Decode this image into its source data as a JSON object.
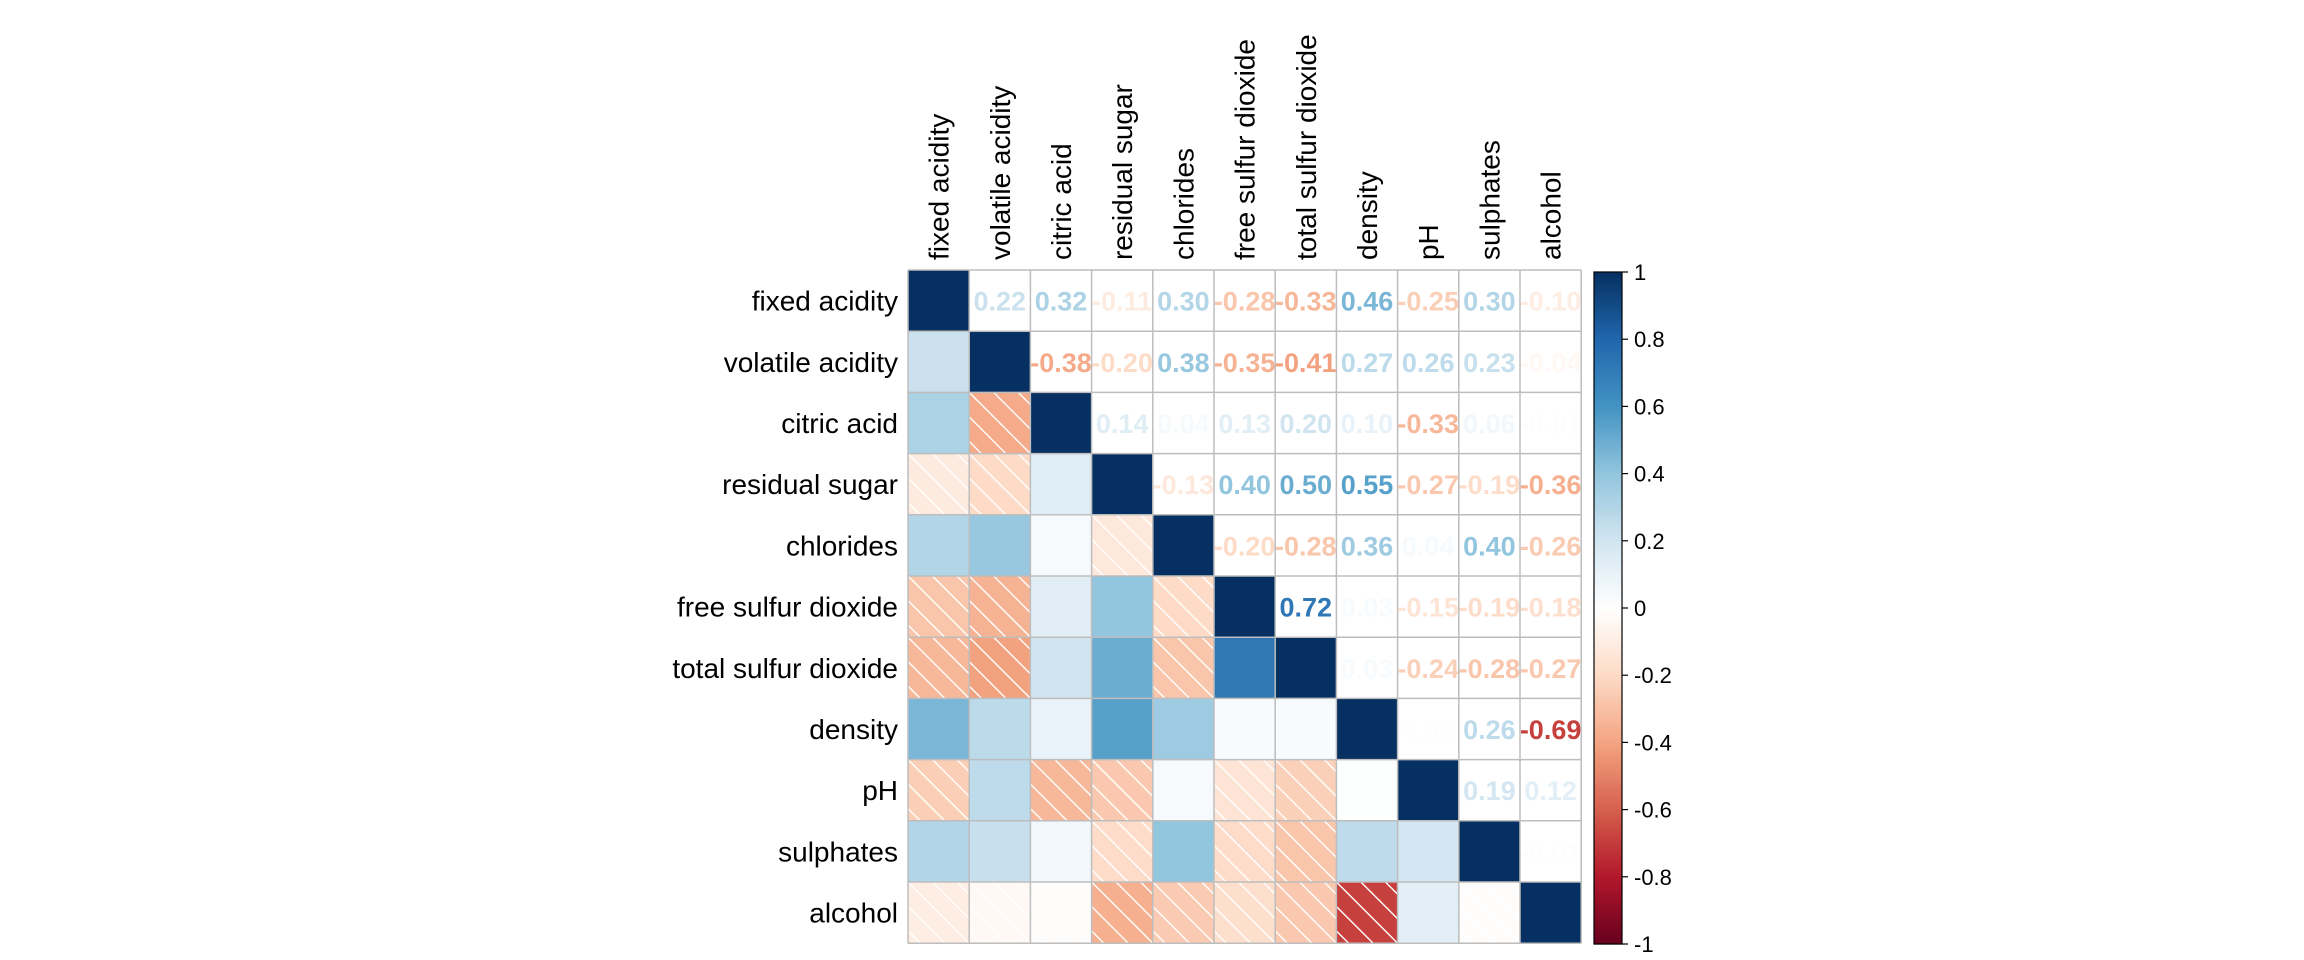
{
  "chart_data": {
    "type": "heatmap",
    "variables": [
      "fixed acidity",
      "volatile acidity",
      "citric acid",
      "residual sugar",
      "chlorides",
      "free sulfur dioxide",
      "total sulfur dioxide",
      "density",
      "pH",
      "sulphates",
      "alcohol"
    ],
    "matrix": [
      [
        1.0,
        0.22,
        0.32,
        -0.11,
        0.3,
        -0.28,
        -0.33,
        0.46,
        -0.25,
        0.3,
        -0.1
      ],
      [
        0.22,
        1.0,
        -0.38,
        -0.2,
        0.38,
        -0.35,
        -0.41,
        0.27,
        0.26,
        0.23,
        -0.04
      ],
      [
        0.32,
        -0.38,
        1.0,
        0.14,
        0.04,
        0.13,
        0.2,
        0.1,
        -0.33,
        0.06,
        -0.01
      ],
      [
        -0.11,
        -0.2,
        0.14,
        1.0,
        -0.13,
        0.4,
        0.5,
        0.55,
        -0.27,
        -0.19,
        -0.36
      ],
      [
        0.3,
        0.38,
        0.04,
        -0.13,
        1.0,
        -0.2,
        -0.28,
        0.36,
        0.04,
        0.4,
        -0.26
      ],
      [
        -0.28,
        -0.35,
        0.13,
        0.4,
        -0.2,
        1.0,
        0.72,
        0.03,
        -0.15,
        -0.19,
        -0.18
      ],
      [
        -0.33,
        -0.41,
        0.2,
        0.5,
        -0.28,
        0.72,
        1.0,
        0.03,
        -0.24,
        -0.28,
        -0.27
      ],
      [
        0.46,
        0.27,
        0.1,
        0.55,
        0.36,
        0.03,
        0.03,
        1.0,
        0.01,
        0.26,
        -0.69
      ],
      [
        -0.25,
        0.26,
        -0.33,
        -0.27,
        0.04,
        -0.15,
        -0.24,
        0.01,
        1.0,
        0.19,
        0.12
      ],
      [
        0.3,
        0.23,
        0.06,
        -0.19,
        0.4,
        -0.19,
        -0.28,
        0.26,
        0.19,
        1.0,
        -0.01
      ],
      [
        -0.1,
        -0.04,
        -0.01,
        -0.36,
        -0.26,
        -0.18,
        -0.27,
        -0.69,
        0.12,
        -0.01,
        1.0
      ]
    ],
    "upper_triangle": "number",
    "lower_triangle": "shade",
    "color_scale": {
      "min": -1,
      "max": 1,
      "ticks": [
        "1",
        "0.8",
        "0.6",
        "0.4",
        "0.2",
        "0",
        "-0.2",
        "-0.4",
        "-0.6",
        "-0.8",
        "-1"
      ],
      "stops": [
        [
          -1.0,
          "#67001F"
        ],
        [
          -0.8,
          "#B2182B"
        ],
        [
          -0.6,
          "#D6604D"
        ],
        [
          -0.4,
          "#F4A582"
        ],
        [
          -0.2,
          "#FDDBC7"
        ],
        [
          0.0,
          "#FFFFFF"
        ],
        [
          0.2,
          "#D1E5F0"
        ],
        [
          0.4,
          "#92C5DE"
        ],
        [
          0.6,
          "#4393C3"
        ],
        [
          0.8,
          "#2166AC"
        ],
        [
          1.0,
          "#053061"
        ]
      ]
    },
    "grid": true,
    "legend_position": "right"
  }
}
